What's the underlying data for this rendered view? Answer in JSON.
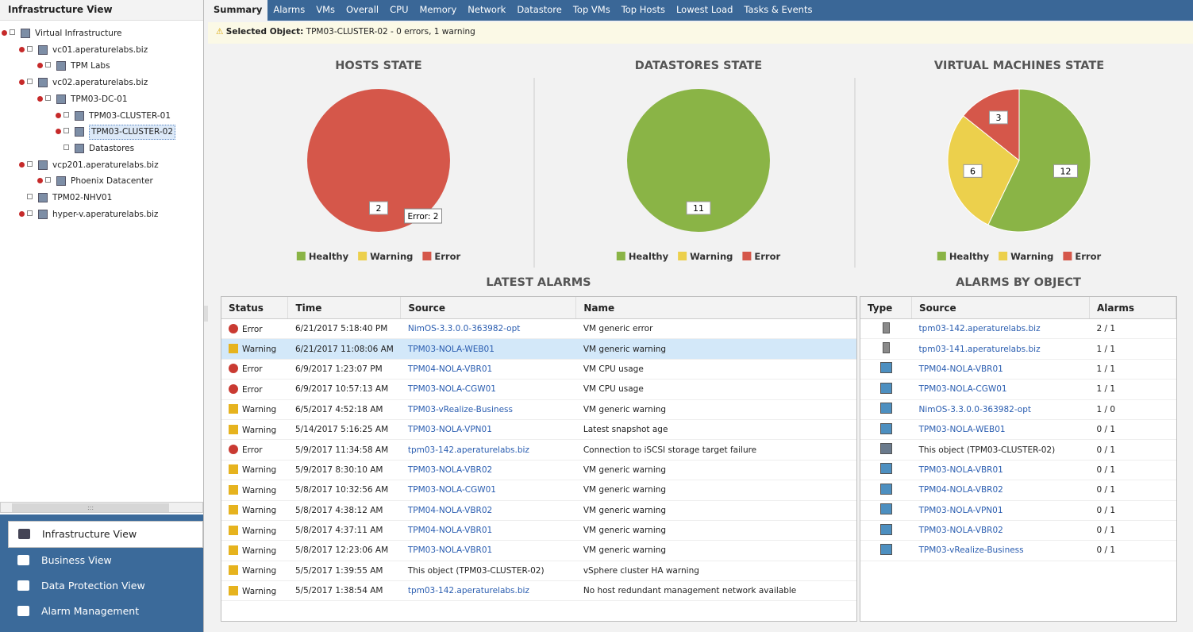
{
  "sidebar": {
    "title": "Infrastructure View",
    "tree": [
      {
        "label": "Virtual Infrastructure",
        "level": 0
      },
      {
        "label": "vc01.aperaturelabs.biz",
        "level": 1
      },
      {
        "label": "TPM Labs",
        "level": 2
      },
      {
        "label": "vc02.aperaturelabs.biz",
        "level": 1
      },
      {
        "label": "TPM03-DC-01",
        "level": 2
      },
      {
        "label": "TPM03-CLUSTER-01",
        "level": 3
      },
      {
        "label": "TPM03-CLUSTER-02",
        "level": 3
      },
      {
        "label": "Datastores",
        "level": 3
      },
      {
        "label": "vcp201.aperaturelabs.biz",
        "level": 1
      },
      {
        "label": "Phoenix Datacenter",
        "level": 2
      },
      {
        "label": "TPM02-NHV01",
        "level": 1
      },
      {
        "label": "hyper-v.aperaturelabs.biz",
        "level": 1
      }
    ],
    "scroll_label": ":::",
    "nav": [
      "Infrastructure View",
      "Business View",
      "Data Protection View",
      "Alarm Management"
    ]
  },
  "tabs": [
    "Summary",
    "Alarms",
    "VMs",
    "Overall",
    "CPU",
    "Memory",
    "Network",
    "Datastore",
    "Top VMs",
    "Top Hosts",
    "Lowest Load",
    "Tasks & Events"
  ],
  "selected_object": {
    "label": "Selected Object:",
    "name": "TPM03-CLUSTER-02",
    "summary": "- 0 errors, 1 warning"
  },
  "chart_data": [
    {
      "type": "pie",
      "title": "HOSTS STATE",
      "categories": [
        "Healthy",
        "Warning",
        "Error"
      ],
      "colors": [
        "#8ab446",
        "#ecd04c",
        "#d5574a"
      ],
      "values": [
        0,
        0,
        2
      ],
      "tooltip": "Error: 2"
    },
    {
      "type": "pie",
      "title": "DATASTORES STATE",
      "categories": [
        "Healthy",
        "Warning",
        "Error"
      ],
      "colors": [
        "#8ab446",
        "#ecd04c",
        "#d5574a"
      ],
      "values": [
        11,
        0,
        0
      ]
    },
    {
      "type": "pie",
      "title": "VIRTUAL MACHINES STATE",
      "categories": [
        "Healthy",
        "Warning",
        "Error"
      ],
      "colors": [
        "#8ab446",
        "#ecd04c",
        "#d5574a"
      ],
      "values": [
        12,
        6,
        3
      ]
    }
  ],
  "latest_alarms": {
    "title": "LATEST ALARMS",
    "headers": [
      "Status",
      "Time",
      "Source",
      "Name"
    ],
    "rows": [
      [
        "Error",
        "6/21/2017 5:18:40 PM",
        "NimOS-3.3.0.0-363982-opt",
        "VM generic error"
      ],
      [
        "Warning",
        "6/21/2017 11:08:06 AM",
        "TPM03-NOLA-WEB01",
        "VM generic warning"
      ],
      [
        "Error",
        "6/9/2017 1:23:07 PM",
        "TPM04-NOLA-VBR01",
        "VM CPU usage"
      ],
      [
        "Error",
        "6/9/2017 10:57:13 AM",
        "TPM03-NOLA-CGW01",
        "VM CPU usage"
      ],
      [
        "Warning",
        "6/5/2017 4:52:18 AM",
        "TPM03-vRealize-Business",
        "VM generic warning"
      ],
      [
        "Warning",
        "5/14/2017 5:16:25 AM",
        "TPM03-NOLA-VPN01",
        "Latest snapshot age"
      ],
      [
        "Error",
        "5/9/2017 11:34:58 AM",
        "tpm03-142.aperaturelabs.biz",
        "Connection to iSCSI storage target failure"
      ],
      [
        "Warning",
        "5/9/2017 8:30:10 AM",
        "TPM03-NOLA-VBR02",
        "VM generic warning"
      ],
      [
        "Warning",
        "5/8/2017 10:32:56 AM",
        "TPM03-NOLA-CGW01",
        "VM generic warning"
      ],
      [
        "Warning",
        "5/8/2017 4:38:12 AM",
        "TPM04-NOLA-VBR02",
        "VM generic warning"
      ],
      [
        "Warning",
        "5/8/2017 4:37:11 AM",
        "TPM04-NOLA-VBR01",
        "VM generic warning"
      ],
      [
        "Warning",
        "5/8/2017 12:23:06 AM",
        "TPM03-NOLA-VBR01",
        "VM generic warning"
      ],
      [
        "Warning",
        "5/5/2017 1:39:55 AM",
        "This object (TPM03-CLUSTER-02)",
        "vSphere cluster HA warning"
      ],
      [
        "Warning",
        "5/5/2017 1:38:54 AM",
        "tpm03-142.aperaturelabs.biz",
        "No host redundant management network available"
      ]
    ]
  },
  "alarms_by_object": {
    "title": "ALARMS BY OBJECT",
    "headers": [
      "Type",
      "Source",
      "Alarms"
    ],
    "rows": [
      [
        "tpm03-142.aperaturelabs.biz",
        "2 / 1"
      ],
      [
        "tpm03-141.aperaturelabs.biz",
        "1 / 1"
      ],
      [
        "TPM04-NOLA-VBR01",
        "1 / 1"
      ],
      [
        "TPM03-NOLA-CGW01",
        "1 / 1"
      ],
      [
        "NimOS-3.3.0.0-363982-opt",
        "1 / 0"
      ],
      [
        "TPM03-NOLA-WEB01",
        "0 / 1"
      ],
      [
        "This object (TPM03-CLUSTER-02)",
        "0 / 1"
      ],
      [
        "TPM03-NOLA-VBR01",
        "0 / 1"
      ],
      [
        "TPM04-NOLA-VBR02",
        "0 / 1"
      ],
      [
        "TPM03-NOLA-VPN01",
        "0 / 1"
      ],
      [
        "TPM03-NOLA-VBR02",
        "0 / 1"
      ],
      [
        "TPM03-vRealize-Business",
        "0 / 1"
      ]
    ]
  }
}
